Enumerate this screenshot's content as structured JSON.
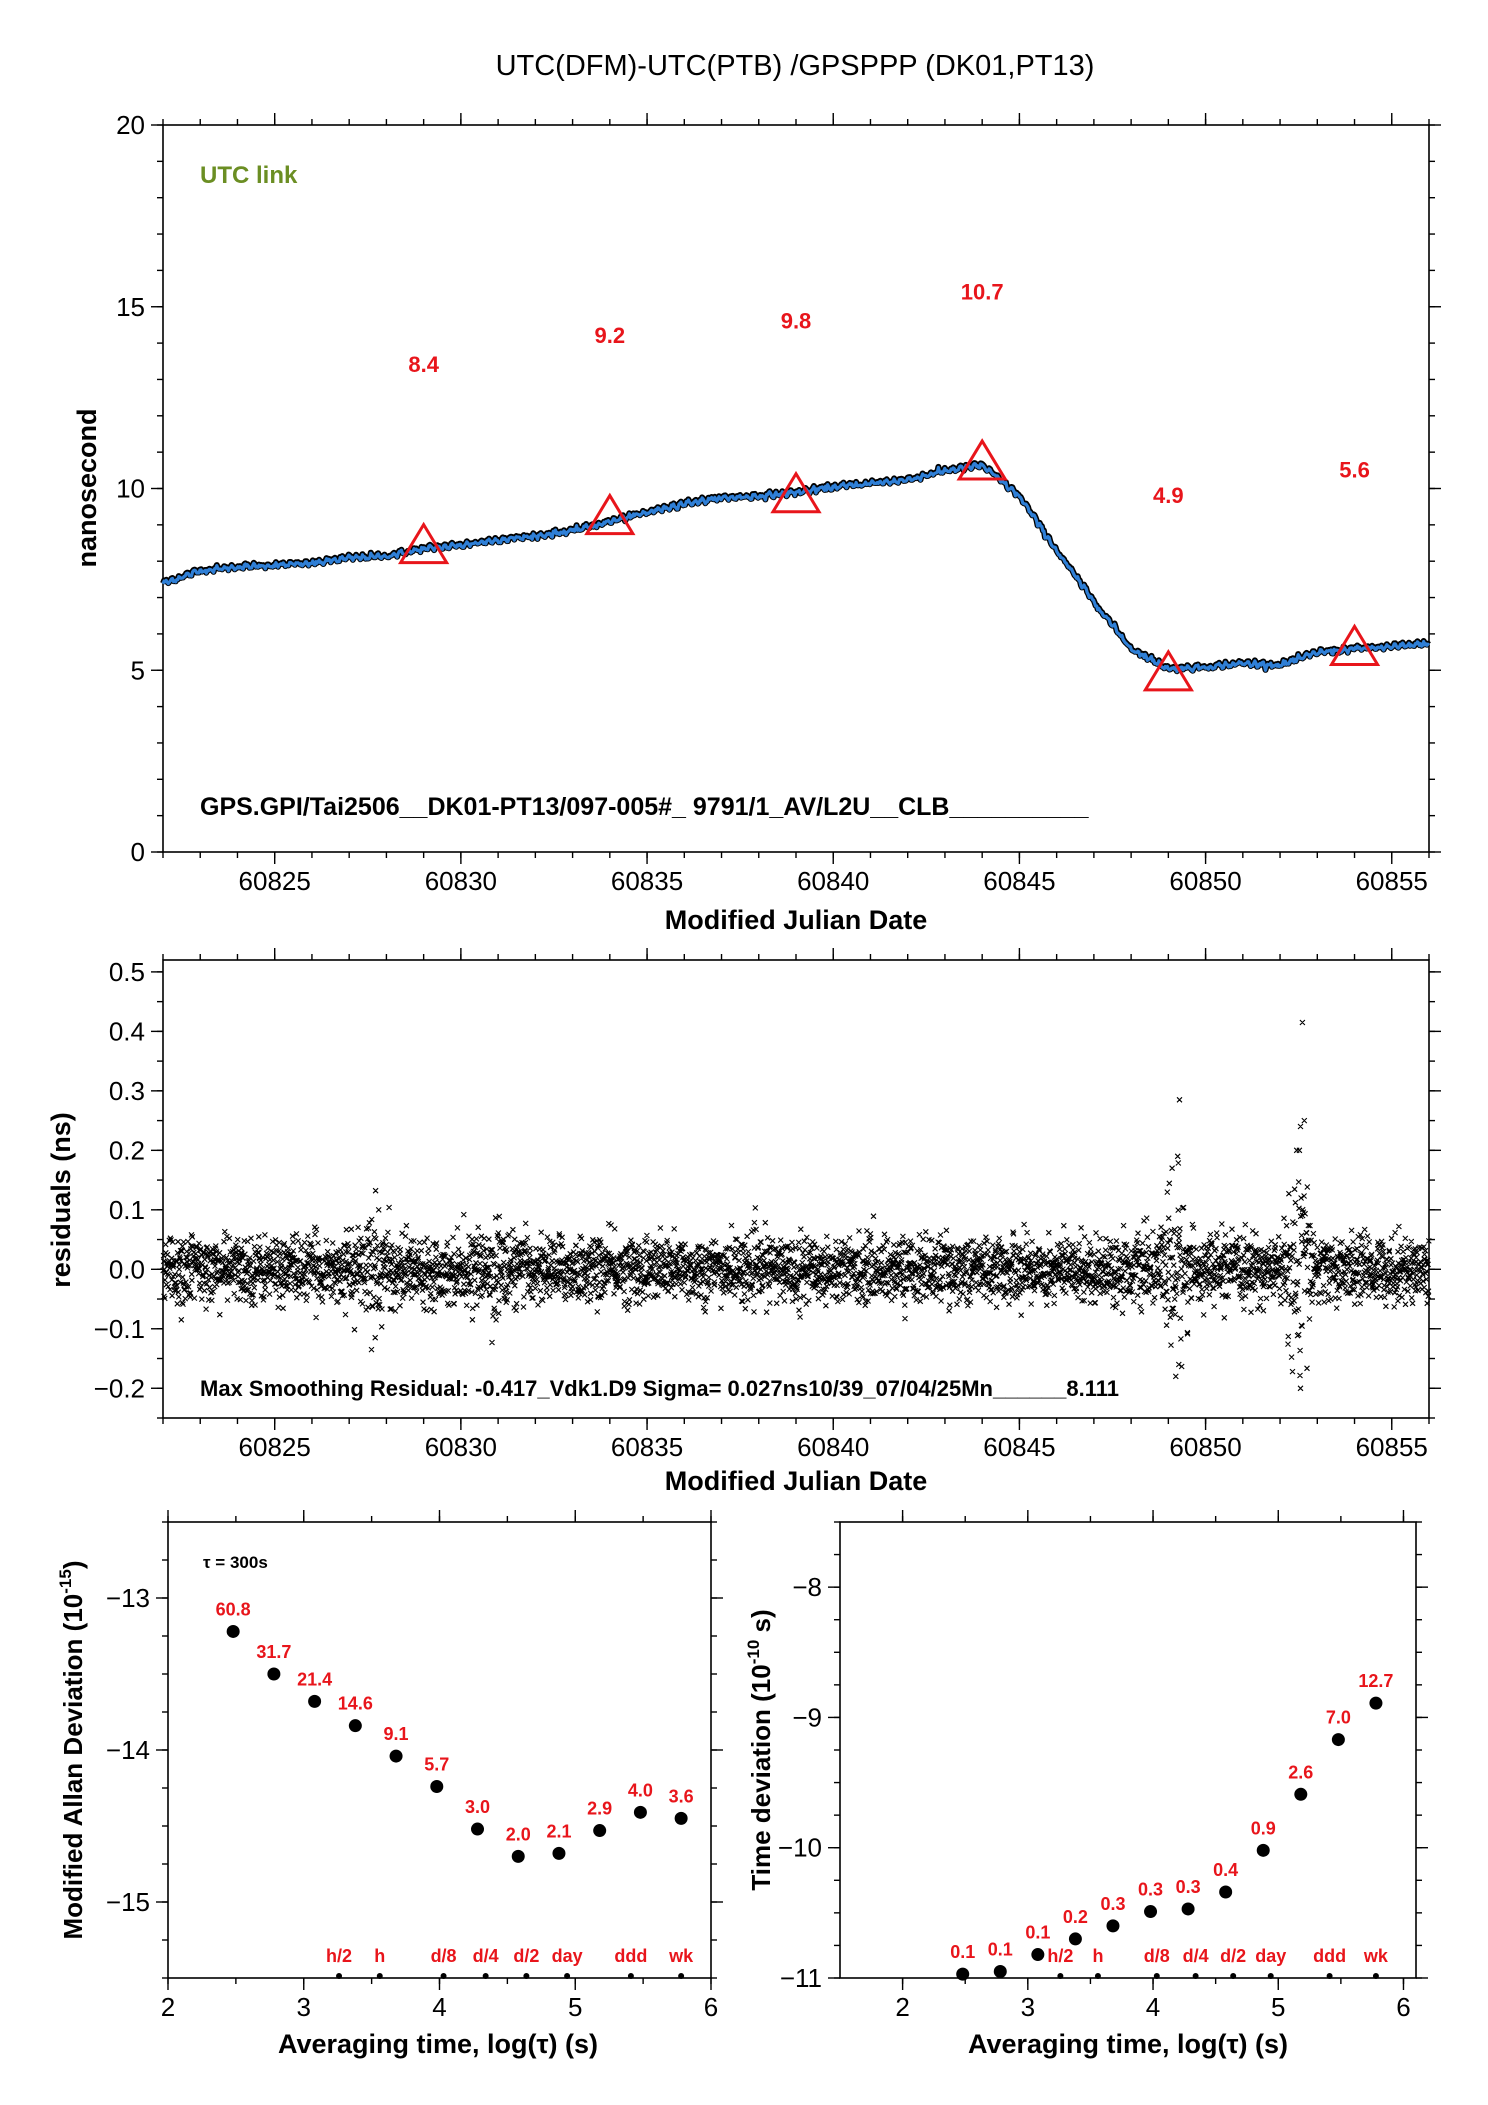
{
  "title": "UTC(DFM)-UTC(PTB)  /GPSPPP  (DK01,PT13)",
  "chart_data": [
    {
      "type": "line",
      "panel": "top",
      "legend_text": "UTC link",
      "legend_color": "#6b8e23",
      "series_color": "#2f7fd6",
      "marker_color": "#e8151b",
      "xlabel": "Modified Julian Date",
      "ylabel": "nanosecond",
      "xlim": [
        60822,
        60856
      ],
      "ylim": [
        0,
        20
      ],
      "xticks": [
        "60825",
        "60830",
        "60835",
        "60840",
        "60845",
        "60850",
        "60855"
      ],
      "yticks": [
        "0",
        "5",
        "10",
        "15",
        "20"
      ],
      "series_points": [
        [
          60822,
          7.4
        ],
        [
          60823,
          7.75
        ],
        [
          60824,
          7.85
        ],
        [
          60825,
          7.9
        ],
        [
          60826,
          7.95
        ],
        [
          60827,
          8.1
        ],
        [
          60828,
          8.15
        ],
        [
          60829,
          8.35
        ],
        [
          60830,
          8.45
        ],
        [
          60831,
          8.6
        ],
        [
          60832,
          8.7
        ],
        [
          60833,
          8.85
        ],
        [
          60834,
          9.1
        ],
        [
          60835,
          9.35
        ],
        [
          60836,
          9.6
        ],
        [
          60837,
          9.75
        ],
        [
          60838,
          9.8
        ],
        [
          60839,
          9.9
        ],
        [
          60840,
          10.05
        ],
        [
          60841,
          10.15
        ],
        [
          60842,
          10.25
        ],
        [
          60843,
          10.5
        ],
        [
          60844,
          10.65
        ],
        [
          60845,
          9.8
        ],
        [
          60846,
          8.3
        ],
        [
          60847,
          6.9
        ],
        [
          60848,
          5.6
        ],
        [
          60849,
          5.05
        ],
        [
          60850,
          5.1
        ],
        [
          60851,
          5.2
        ],
        [
          60852,
          5.15
        ],
        [
          60853,
          5.5
        ],
        [
          60854,
          5.6
        ],
        [
          60855,
          5.65
        ],
        [
          60856,
          5.75
        ]
      ],
      "markers": [
        {
          "x": 60829,
          "y": 8.4,
          "label": "8.4",
          "label_y": 13.2
        },
        {
          "x": 60834,
          "y": 9.2,
          "label": "9.2",
          "label_y": 14.0
        },
        {
          "x": 60839,
          "y": 9.8,
          "label": "9.8",
          "label_y": 14.4
        },
        {
          "x": 60844,
          "y": 10.7,
          "label": "10.7",
          "label_y": 15.2
        },
        {
          "x": 60849,
          "y": 4.9,
          "label": "4.9",
          "label_y": 9.6
        },
        {
          "x": 60854,
          "y": 5.6,
          "label": "5.6",
          "label_y": 10.3
        }
      ],
      "annotation": "GPS.GPI/Tai2506__DK01-PT13/097-005#_  9791/1_AV/L2U__CLB__________"
    },
    {
      "type": "scatter",
      "panel": "middle",
      "xlabel": "Modified Julian Date",
      "ylabel": "residuals (ns)",
      "xlim": [
        60822,
        60856
      ],
      "ylim": [
        -0.25,
        0.52
      ],
      "xticks": [
        "60825",
        "60830",
        "60835",
        "60840",
        "60845",
        "60850",
        "60855"
      ],
      "yticks": [
        "−0.2",
        "−0.1",
        "0.0",
        "0.1",
        "0.2",
        "0.3",
        "0.4",
        "0.5"
      ],
      "noise_sigma": 0.027,
      "bursts": [
        {
          "x": 60822.5,
          "amp": 0.06
        },
        {
          "x": 60827.7,
          "amp": 0.13
        },
        {
          "x": 60831,
          "amp": 0.1
        },
        {
          "x": 60849.2,
          "amp": 0.28
        },
        {
          "x": 60852.5,
          "amp": 0.42
        }
      ],
      "outliers": [
        [
          60849.3,
          0.285
        ],
        [
          60852.6,
          0.415
        ],
        [
          60852.65,
          0.25
        ],
        [
          60852.55,
          0.24
        ],
        [
          60849.25,
          0.19
        ],
        [
          60849.2,
          -0.18
        ],
        [
          60849.28,
          -0.16
        ],
        [
          60827.6,
          -0.135
        ],
        [
          60827.7,
          -0.115
        ],
        [
          60849.1,
          0.17
        ],
        [
          60852.5,
          -0.11
        ]
      ],
      "annotation": "Max Smoothing Residual: -0.417_Vdk1.D9  Sigma= 0.027ns10/39_07/04/25Mn______8.111"
    },
    {
      "type": "scatter",
      "panel": "bottom-left",
      "xlabel": "Averaging time, log(τ) (s)",
      "ylabel": "Modified Allan Deviation (10",
      "ylabel_sup": "-15",
      "ylabel_end": ")",
      "xlim": [
        2,
        6
      ],
      "ylim": [
        -15.5,
        -12.5
      ],
      "xticks": [
        "2",
        "3",
        "4",
        "5",
        "6"
      ],
      "yticks": [
        "−15",
        "−14",
        "−13"
      ],
      "note": "τ = 300s",
      "points": [
        {
          "x": 2.48,
          "y": -13.22,
          "label": "60.8"
        },
        {
          "x": 2.78,
          "y": -13.5,
          "label": "31.7"
        },
        {
          "x": 3.08,
          "y": -13.68,
          "label": "21.4"
        },
        {
          "x": 3.38,
          "y": -13.84,
          "label": "14.6"
        },
        {
          "x": 3.68,
          "y": -14.04,
          "label": "9.1"
        },
        {
          "x": 3.98,
          "y": -14.24,
          "label": "5.7"
        },
        {
          "x": 4.28,
          "y": -14.52,
          "label": "3.0"
        },
        {
          "x": 4.58,
          "y": -14.7,
          "label": "2.0"
        },
        {
          "x": 4.88,
          "y": -14.68,
          "label": "2.1"
        },
        {
          "x": 5.18,
          "y": -14.53,
          "label": "2.9"
        },
        {
          "x": 5.48,
          "y": -14.41,
          "label": "4.0"
        },
        {
          "x": 5.78,
          "y": -14.45,
          "label": "3.6"
        }
      ],
      "time_marks": [
        {
          "x": 3.26,
          "label": "h/2"
        },
        {
          "x": 3.56,
          "label": "h"
        },
        {
          "x": 4.03,
          "label": "d/8"
        },
        {
          "x": 4.34,
          "label": "d/4"
        },
        {
          "x": 4.64,
          "label": "d/2"
        },
        {
          "x": 4.94,
          "label": "day"
        },
        {
          "x": 5.41,
          "label": "ddd"
        },
        {
          "x": 5.78,
          "label": "wk"
        }
      ]
    },
    {
      "type": "scatter",
      "panel": "bottom-right",
      "xlabel": "Averaging time, log(τ) (s)",
      "ylabel": "Time deviation (10",
      "ylabel_sup": "-10",
      "ylabel_end": " s)",
      "xlim": [
        1.5,
        6.1
      ],
      "ylim": [
        -11,
        -7.5
      ],
      "xticks": [
        "2",
        "3",
        "4",
        "5",
        "6"
      ],
      "yticks": [
        "−11",
        "−10",
        "−9",
        "−8"
      ],
      "points": [
        {
          "x": 2.48,
          "y": -10.97,
          "label": "0.1"
        },
        {
          "x": 2.78,
          "y": -10.95,
          "label": "0.1"
        },
        {
          "x": 3.08,
          "y": -10.82,
          "label": "0.1"
        },
        {
          "x": 3.38,
          "y": -10.7,
          "label": "0.2"
        },
        {
          "x": 3.68,
          "y": -10.6,
          "label": "0.3"
        },
        {
          "x": 3.98,
          "y": -10.49,
          "label": "0.3"
        },
        {
          "x": 4.28,
          "y": -10.47,
          "label": "0.3"
        },
        {
          "x": 4.58,
          "y": -10.34,
          "label": "0.4"
        },
        {
          "x": 4.88,
          "y": -10.02,
          "label": "0.9"
        },
        {
          "x": 5.18,
          "y": -9.59,
          "label": "2.6"
        },
        {
          "x": 5.48,
          "y": -9.17,
          "label": "7.0"
        },
        {
          "x": 5.78,
          "y": -8.89,
          "label": "12.7"
        }
      ],
      "time_marks": [
        {
          "x": 3.26,
          "label": "h/2"
        },
        {
          "x": 3.56,
          "label": "h"
        },
        {
          "x": 4.03,
          "label": "d/8"
        },
        {
          "x": 4.34,
          "label": "d/4"
        },
        {
          "x": 4.64,
          "label": "d/2"
        },
        {
          "x": 4.94,
          "label": "day"
        },
        {
          "x": 5.41,
          "label": "ddd"
        },
        {
          "x": 5.78,
          "label": "wk"
        }
      ]
    }
  ]
}
